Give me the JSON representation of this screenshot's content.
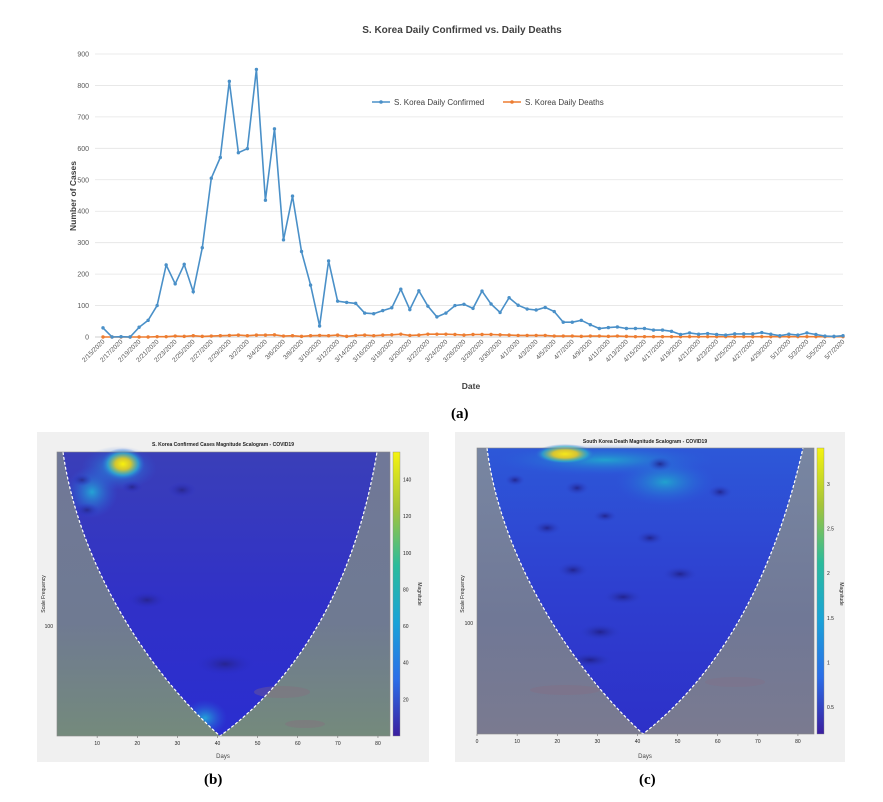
{
  "chart_data": [
    {
      "id": "a",
      "type": "line",
      "title": "S. Korea Daily Confirmed vs. Daily Deaths",
      "xlabel": "Date",
      "ylabel": "Number of Cases",
      "ylim": [
        0,
        900
      ],
      "yticks": [
        "0",
        "100",
        "200",
        "300",
        "400",
        "500",
        "600",
        "700",
        "800",
        "900"
      ],
      "grid": true,
      "legend_position": "top-right",
      "x_tick_labels": [
        "2/15/2020",
        "2/17/2020",
        "2/19/2020",
        "2/21/2020",
        "2/23/2020",
        "2/25/2020",
        "2/27/2020",
        "2/29/2020",
        "3/2/2020",
        "3/4/2020",
        "3/6/2020",
        "3/8/2020",
        "3/10/2020",
        "3/12/2020",
        "3/14/2020",
        "3/16/2020",
        "3/18/2020",
        "3/20/2020",
        "3/22/2020",
        "3/24/2020",
        "3/26/2020",
        "3/28/2020",
        "3/30/2020",
        "4/1/2020",
        "4/3/2020",
        "4/5/2020",
        "4/7/2020",
        "4/9/2020",
        "4/11/2020",
        "4/13/2020",
        "4/15/2020",
        "4/17/2020",
        "4/19/2020",
        "4/21/2020",
        "4/23/2020",
        "4/25/2020",
        "4/27/2020",
        "4/29/2020",
        "5/1/2020",
        "5/3/2020",
        "5/5/2020",
        "5/7/2020"
      ],
      "series": [
        {
          "name": "S. Korea Daily Confirmed",
          "color": "#4a90c8",
          "values": [
            29,
            0,
            1,
            0,
            31,
            53,
            100,
            229,
            169,
            231,
            144,
            284,
            505,
            571,
            813,
            586,
            599,
            851,
            435,
            662,
            309,
            448,
            272,
            165,
            35,
            242,
            114,
            110,
            107,
            76,
            74,
            84,
            93,
            152,
            87,
            147,
            98,
            64,
            76,
            100,
            104,
            91,
            146,
            105,
            78,
            125,
            101,
            89,
            86,
            94,
            81,
            47,
            47,
            53,
            39,
            27,
            30,
            32,
            27,
            27,
            27,
            22,
            22,
            18,
            8,
            13,
            9,
            11,
            8,
            6,
            10,
            10,
            10,
            14,
            9,
            4,
            9,
            6,
            13,
            8,
            3,
            2,
            4
          ]
        },
        {
          "name": "S. Korea Daily Deaths",
          "color": "#ed7d31",
          "values": [
            0,
            0,
            0,
            0,
            0,
            0,
            1,
            1,
            3,
            2,
            4,
            2,
            3,
            4,
            5,
            6,
            4,
            6,
            6,
            7,
            3,
            4,
            2,
            4,
            5,
            4,
            6,
            2,
            5,
            6,
            4,
            6,
            7,
            9,
            5,
            6,
            9,
            9,
            9,
            8,
            6,
            8,
            8,
            8,
            7,
            6,
            5,
            5,
            5,
            5,
            3,
            3,
            3,
            2,
            3,
            3,
            2,
            3,
            2,
            1,
            1,
            1,
            1,
            1,
            1,
            1,
            1,
            1,
            1,
            1,
            1,
            1,
            1,
            1,
            1,
            1,
            1,
            1,
            1,
            1,
            1,
            1,
            1
          ]
        }
      ]
    },
    {
      "id": "b",
      "type": "heatmap",
      "title": "S. Korea Confirmed Cases Magnitude Scalogram - COVID19",
      "xlabel": "Days",
      "ylabel": "Scale Frequency",
      "xticks": [
        "10",
        "20",
        "30",
        "40",
        "50",
        "60",
        "70",
        "80"
      ],
      "ytick_label": "100",
      "colorbar_label": "Magnitude",
      "colorbar_ticks": [
        "20",
        "40",
        "60",
        "80",
        "100",
        "120",
        "140"
      ],
      "colorbar_range": [
        0,
        155
      ],
      "peak": {
        "day": 16,
        "magnitude": 150
      }
    },
    {
      "id": "c",
      "type": "heatmap",
      "title": "South Korea Death Magnitude Scalogram - COVID19",
      "xlabel": "Days",
      "ylabel": "Scale Frequency",
      "xticks": [
        "0",
        "10",
        "20",
        "30",
        "40",
        "50",
        "60",
        "70",
        "80"
      ],
      "ytick_label": "100",
      "colorbar_label": "Magnitude",
      "colorbar_ticks": [
        "0.5",
        "1",
        "1.5",
        "2",
        "2.5",
        "3"
      ],
      "colorbar_range": [
        0.2,
        3.4
      ],
      "peak": {
        "day": 26,
        "magnitude": 3.3
      }
    }
  ],
  "panel_labels": {
    "a": "(a)",
    "b": "(b)",
    "c": "(c)"
  }
}
